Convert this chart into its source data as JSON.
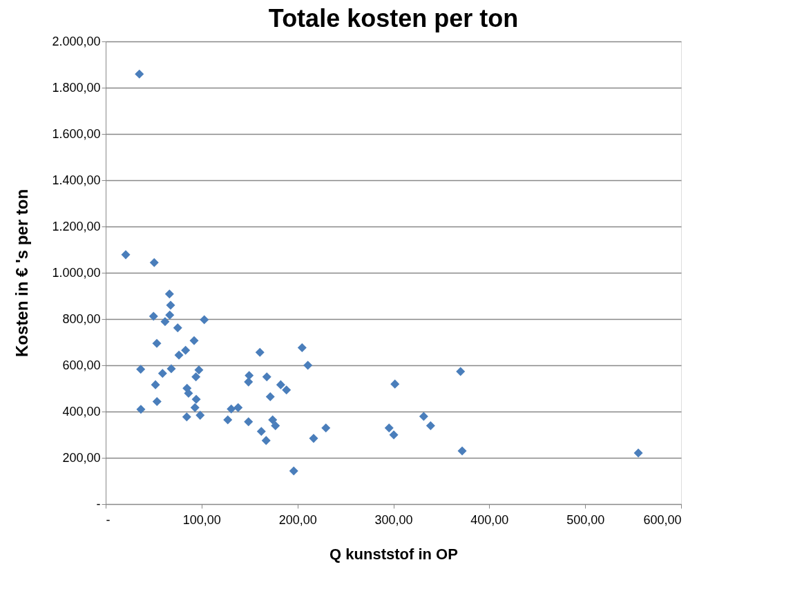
{
  "chart_data": {
    "type": "scatter",
    "title": "Totale kosten per ton",
    "xlabel": "Q kunststof  in OP",
    "ylabel": "Kosten in € 's per ton",
    "x": [
      35.1,
      20.9,
      50.6,
      66.5,
      67.7,
      49.9,
      66.8,
      61.9,
      75.1,
      102.8,
      53.3,
      92.2,
      83.3,
      76.4,
      36.5,
      68.4,
      59.3,
      97.2,
      94.1,
      51.9,
      53.5,
      36.7,
      84.8,
      86.4,
      94.4,
      93.1,
      98.5,
      84.5,
      160.8,
      204.8,
      210.8,
      149.6,
      148.9,
      168.0,
      182.5,
      188.5,
      171.6,
      130.9,
      138.1,
      127.3,
      148.9,
      174.1,
      177.0,
      162.3,
      167.3,
      196.1,
      216.8,
      229.6,
      301.6,
      295.5,
      300.4,
      331.6,
      338.8,
      370.0,
      371.7,
      555.4
    ],
    "series": [
      {
        "color": "#4a7ebb",
        "values": [
          1859,
          1078,
          1044,
          908,
          860,
          812,
          817,
          789,
          762,
          797,
          695,
          707,
          665,
          644,
          583,
          585,
          565,
          580,
          550,
          516,
          443,
          410,
          501,
          479,
          453,
          417,
          384,
          377,
          656,
          676,
          600,
          556,
          528,
          550,
          516,
          493,
          464,
          411,
          417,
          364,
          356,
          364,
          339,
          314,
          275,
          143,
          284,
          329,
          519,
          329,
          299,
          379,
          339,
          573,
          230,
          221
        ]
      }
    ],
    "xlim": [
      0,
      600
    ],
    "xticks": [
      {
        "value": 0,
        "label": "-"
      },
      {
        "value": 100,
        "label": "100,00"
      },
      {
        "value": 200,
        "label": "200,00"
      },
      {
        "value": 300,
        "label": "300,00"
      },
      {
        "value": 400,
        "label": "400,00"
      },
      {
        "value": 500,
        "label": "500,00"
      },
      {
        "value": 600,
        "label": "600,00"
      }
    ],
    "ylim": [
      0,
      2000
    ],
    "yticks": [
      {
        "value": 0,
        "label": "-"
      },
      {
        "value": 200,
        "label": "200,00"
      },
      {
        "value": 400,
        "label": "400,00"
      },
      {
        "value": 600,
        "label": "600,00"
      },
      {
        "value": 800,
        "label": "800,00"
      },
      {
        "value": 1000,
        "label": "1.000,00"
      },
      {
        "value": 1200,
        "label": "1.200,00"
      },
      {
        "value": 1400,
        "label": "1.400,00"
      },
      {
        "value": 1600,
        "label": "1.600,00"
      },
      {
        "value": 1800,
        "label": "1.800,00"
      },
      {
        "value": 2000,
        "label": "2.000,00"
      }
    ],
    "grid": "y",
    "marker": "diamond",
    "legend": false
  }
}
